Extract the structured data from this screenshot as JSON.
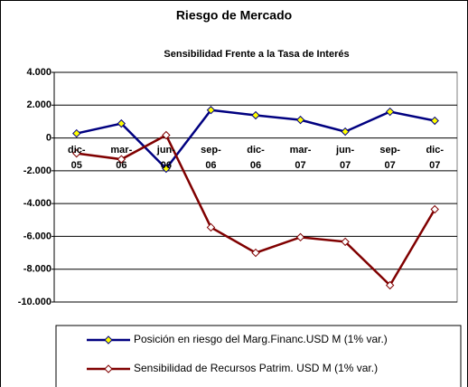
{
  "chart_data": {
    "type": "line",
    "title": "Riesgo de Mercado",
    "subtitle": "Sensibilidad Frente a la Tasa de Interés",
    "categories": [
      "dic-05",
      "mar-06",
      "jun-06",
      "sep-06",
      "dic-06",
      "mar-07",
      "jun-07",
      "sep-07",
      "dic-07"
    ],
    "series": [
      {
        "name": "Posición en riesgo del Marg.Financ.USD M (1% var.)",
        "color": "#000080",
        "marker_fill": "#ffff00",
        "values": [
          275,
          880,
          -1870,
          1700,
          1380,
          1100,
          385,
          1600,
          1050
        ]
      },
      {
        "name": "Sensibilidad de Recursos Patrim. USD M (1% var.)",
        "color": "#800000",
        "marker_fill": "#ffffff",
        "values": [
          -940,
          -1300,
          170,
          -5450,
          -7000,
          -6050,
          -6330,
          -8980,
          -4350
        ]
      }
    ],
    "ylim": [
      -10000,
      4000
    ],
    "yticks": [
      {
        "value": -10000,
        "label": "-10.000"
      },
      {
        "value": -8000,
        "label": "-8.000"
      },
      {
        "value": -6000,
        "label": "-6.000"
      },
      {
        "value": -4000,
        "label": "-4.000"
      },
      {
        "value": -2000,
        "label": "-2.000"
      },
      0,
      {
        "value": 2000,
        "label": "2.000"
      },
      {
        "value": 4000,
        "label": "4.000"
      }
    ],
    "grid": true
  }
}
